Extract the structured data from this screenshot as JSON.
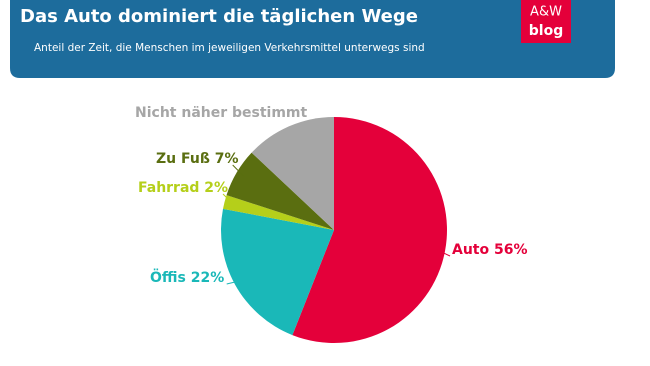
{
  "chart_data": {
    "type": "pie",
    "title": "Das Auto dominiert die täglichen Wege",
    "subtitle": "Anteil der Zeit, die Menschen im jeweiligen Verkehrsmittel unterwegs sind",
    "logo": {
      "top": "A&W",
      "bottom": "blog"
    },
    "values": [
      56,
      22,
      2,
      7,
      13
    ],
    "value_labels": [
      "Auto 56%",
      "Öffis 22%",
      "Fahrrad 2%",
      "Zu Fuß 7%",
      "Nicht näher bestimmt"
    ],
    "colors": [
      "#e4003a",
      "#1ab8b8",
      "#b5cf1a",
      "#5a6e10",
      "#a6a6a6"
    ]
  }
}
